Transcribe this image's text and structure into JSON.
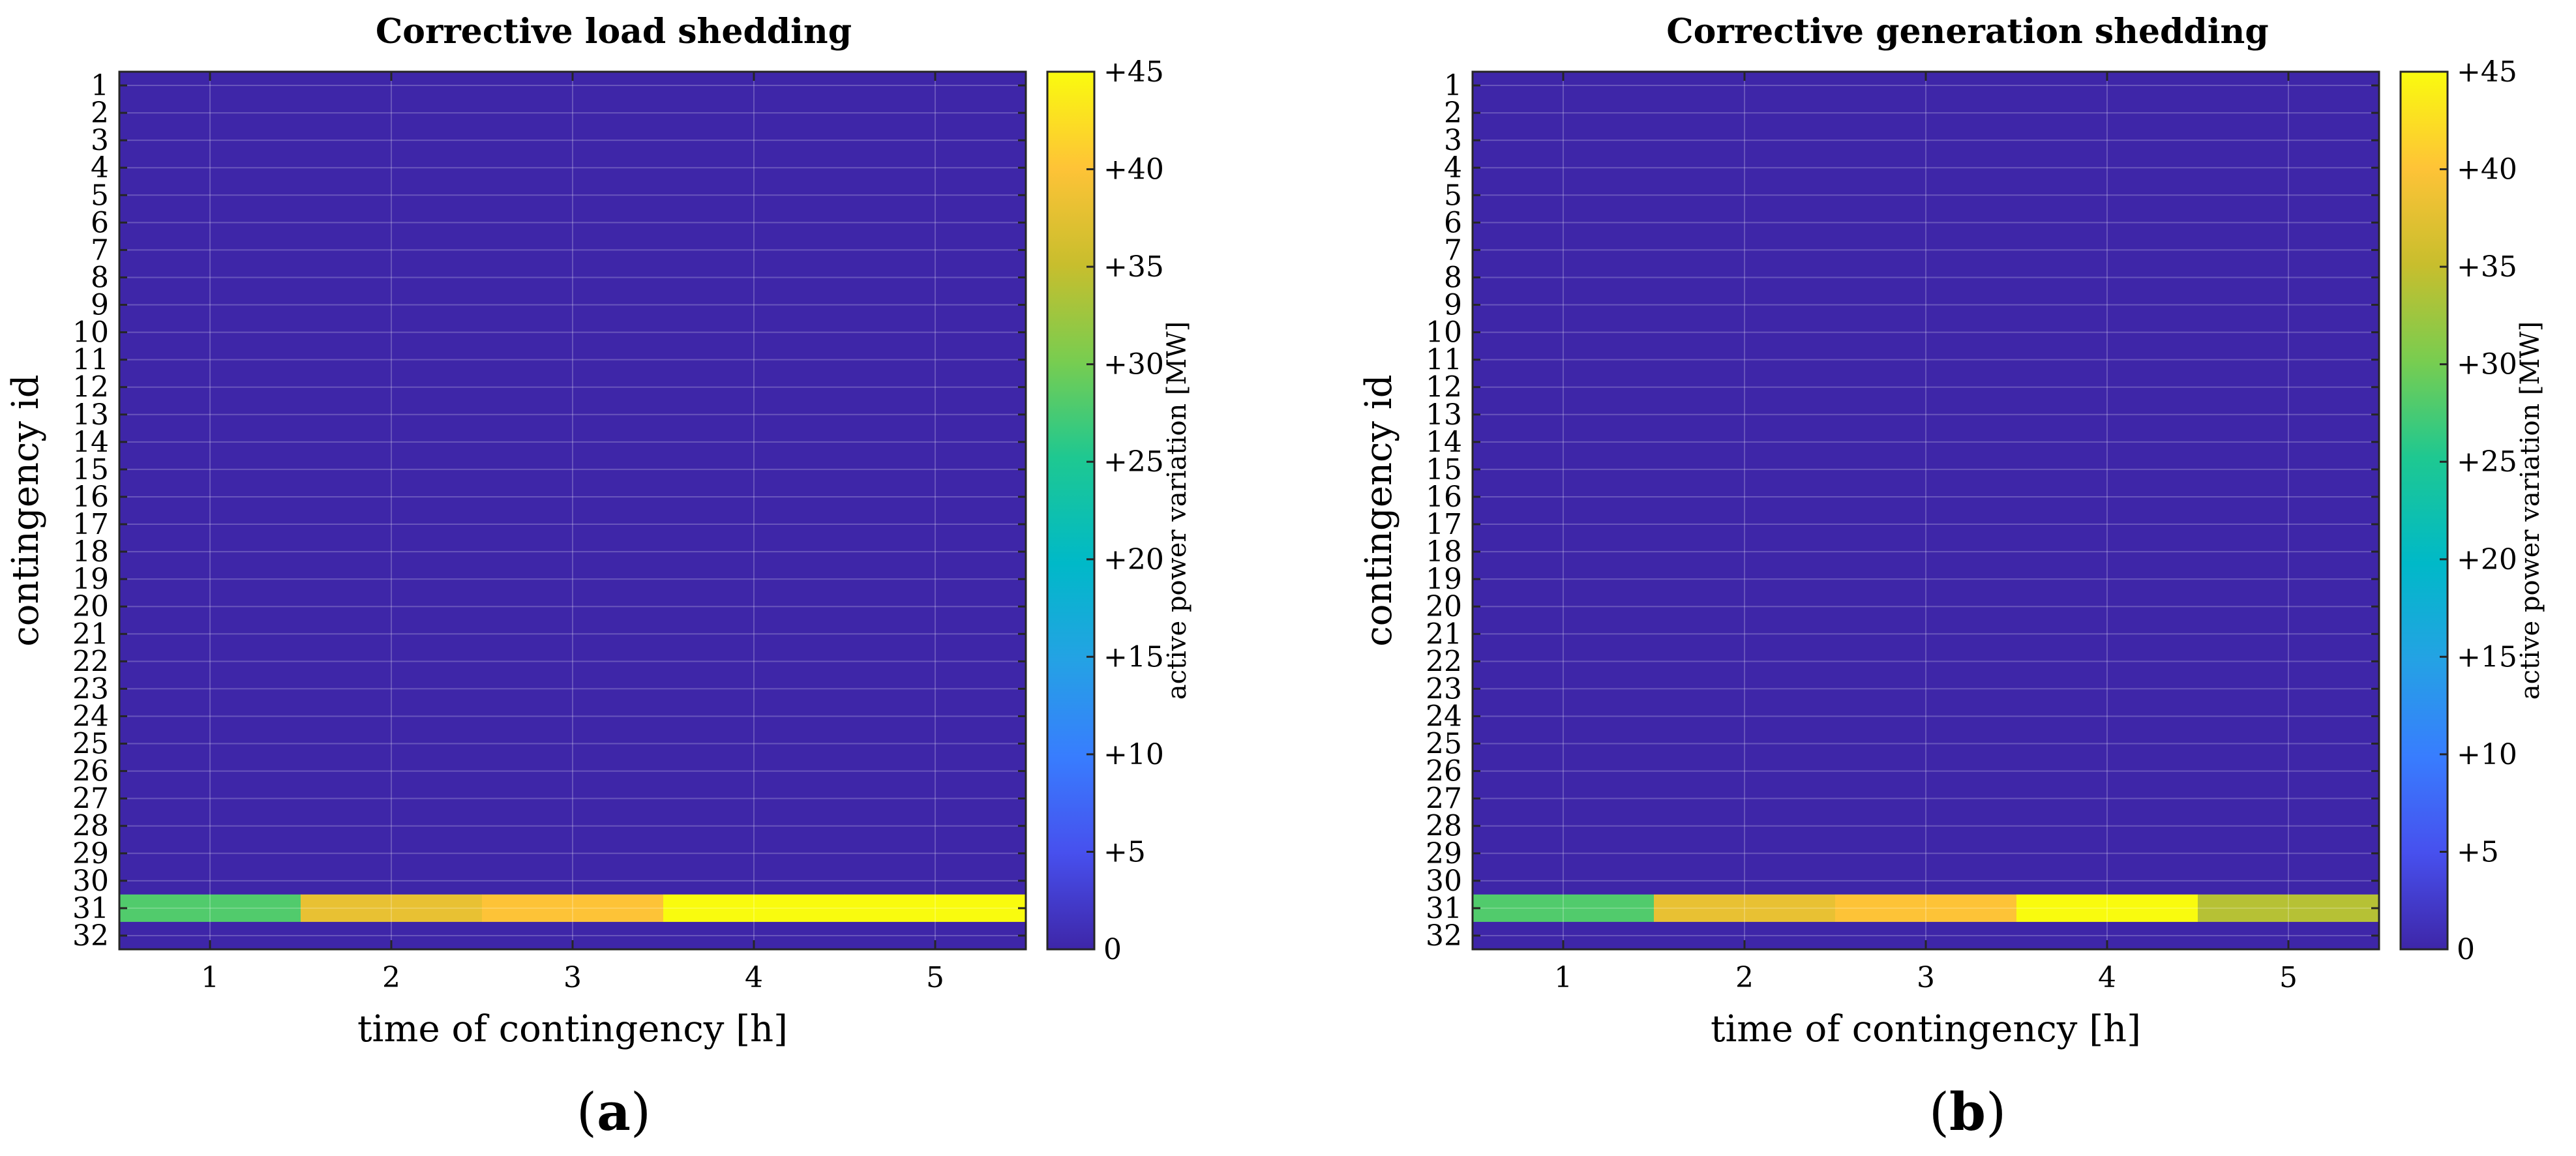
{
  "chart_data": [
    {
      "type": "heatmap",
      "panel_label_open": "(",
      "panel_label_letter": "a",
      "panel_label_close": ")",
      "title": "Corrective load shedding",
      "xlabel": "time of contingency [h]",
      "ylabel": "contingency id",
      "x": [
        1,
        2,
        3,
        4,
        5
      ],
      "x_tick_labels": [
        "1",
        "2",
        "3",
        "4",
        "5"
      ],
      "y": [
        1,
        2,
        3,
        4,
        5,
        6,
        7,
        8,
        9,
        10,
        11,
        12,
        13,
        14,
        15,
        16,
        17,
        18,
        19,
        20,
        21,
        22,
        23,
        24,
        25,
        26,
        27,
        28,
        29,
        30,
        31,
        32
      ],
      "y_tick_labels": [
        "1",
        "2",
        "3",
        "4",
        "5",
        "6",
        "7",
        "8",
        "9",
        "10",
        "11",
        "12",
        "13",
        "14",
        "15",
        "16",
        "17",
        "18",
        "19",
        "20",
        "21",
        "22",
        "23",
        "24",
        "25",
        "26",
        "27",
        "28",
        "29",
        "30",
        "31",
        "32"
      ],
      "background_value": 0,
      "nonzero_rows": [
        {
          "contingency_id": 31,
          "values": [
            28,
            38,
            40,
            45,
            45
          ]
        }
      ],
      "colorbar": {
        "label": "active power variation [MW]",
        "range": [
          0,
          45
        ],
        "tick_values": [
          0,
          5,
          10,
          15,
          20,
          25,
          30,
          35,
          40,
          45
        ],
        "tick_labels": [
          "0",
          "+5",
          "+10",
          "+15",
          "+20",
          "+25",
          "+30",
          "+35",
          "+40",
          "+45"
        ],
        "colormap": "parula"
      },
      "grid": true
    },
    {
      "type": "heatmap",
      "panel_label_open": "(",
      "panel_label_letter": "b",
      "panel_label_close": ")",
      "title": "Corrective generation shedding",
      "xlabel": "time of contingency [h]",
      "ylabel": "contingency id",
      "x": [
        1,
        2,
        3,
        4,
        5
      ],
      "x_tick_labels": [
        "1",
        "2",
        "3",
        "4",
        "5"
      ],
      "y": [
        1,
        2,
        3,
        4,
        5,
        6,
        7,
        8,
        9,
        10,
        11,
        12,
        13,
        14,
        15,
        16,
        17,
        18,
        19,
        20,
        21,
        22,
        23,
        24,
        25,
        26,
        27,
        28,
        29,
        30,
        31,
        32
      ],
      "y_tick_labels": [
        "1",
        "2",
        "3",
        "4",
        "5",
        "6",
        "7",
        "8",
        "9",
        "10",
        "11",
        "12",
        "13",
        "14",
        "15",
        "16",
        "17",
        "18",
        "19",
        "20",
        "21",
        "22",
        "23",
        "24",
        "25",
        "26",
        "27",
        "28",
        "29",
        "30",
        "31",
        "32"
      ],
      "background_value": 0,
      "nonzero_rows": [
        {
          "contingency_id": 31,
          "values": [
            28,
            38,
            40,
            45,
            34
          ]
        }
      ],
      "colorbar": {
        "label": "active power variation [MW]",
        "range": [
          0,
          45
        ],
        "tick_values": [
          0,
          5,
          10,
          15,
          20,
          25,
          30,
          35,
          40,
          45
        ],
        "tick_labels": [
          "0",
          "+5",
          "+10",
          "+15",
          "+20",
          "+25",
          "+30",
          "+35",
          "+40",
          "+45"
        ],
        "colormap": "parula"
      },
      "grid": true
    }
  ]
}
